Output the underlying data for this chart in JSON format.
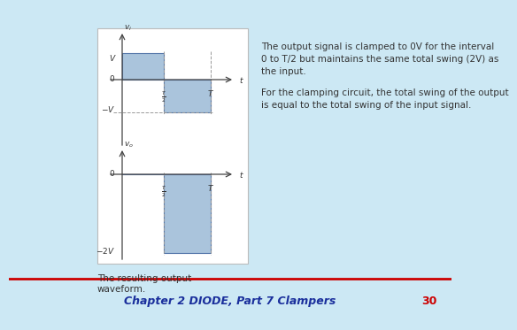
{
  "background_color": "#cce8f4",
  "footer_line_color": "#cc0000",
  "footer_text": "Chapter 2 DIODE, Part 7 Clampers",
  "footer_number": "30",
  "caption_text": "The resulting output\nwaveform.",
  "right_text_line1": "The output signal is clamped to 0V for the interval",
  "right_text_line2": "0 to T/2 but maintains the same total swing (2V) as",
  "right_text_line3": "the input.",
  "right_text_line4": "For the clamping circuit, the total swing of the output",
  "right_text_line5": "is equal to the total swing of the input signal.",
  "waveform_fill_color": "#aac4dc",
  "waveform_edge_color": "#5577aa",
  "axis_color": "#444444",
  "dashed_color": "#999999",
  "label_color": "#333333",
  "panel_edge_color": "#bbbbbb",
  "footer_text_color": "#1a2f9c",
  "footer_number_color": "#cc0000"
}
